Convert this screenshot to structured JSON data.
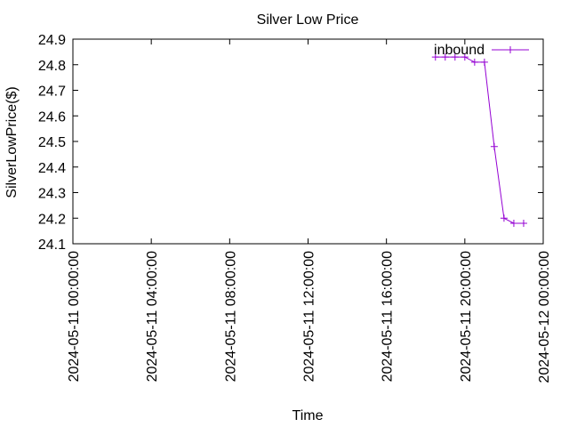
{
  "chart_data": {
    "type": "line",
    "title": "Silver Low Price",
    "xlabel": "Time",
    "ylabel": "SilverLowPrice($)",
    "x_ticks": [
      "2024-05-11 00:00:00",
      "2024-05-11 04:00:00",
      "2024-05-11 08:00:00",
      "2024-05-11 12:00:00",
      "2024-05-11 16:00:00",
      "2024-05-11 20:00:00",
      "2024-05-12 00:00:00"
    ],
    "xlim": [
      "2024-05-11 00:00:00",
      "2024-05-12 00:00:00"
    ],
    "y_ticks": [
      "24.1",
      "24.2",
      "24.3",
      "24.4",
      "24.5",
      "24.6",
      "24.7",
      "24.8",
      "24.9"
    ],
    "ylim": [
      24.1,
      24.9
    ],
    "grid": false,
    "legend_position": "top-right",
    "series": [
      {
        "name": "inbound",
        "color": "#9400d3",
        "marker": "plus",
        "x": [
          "2024-05-11 18:30:00",
          "2024-05-11 19:00:00",
          "2024-05-11 19:30:00",
          "2024-05-11 20:00:00",
          "2024-05-11 20:30:00",
          "2024-05-11 21:00:00",
          "2024-05-11 21:30:00",
          "2024-05-11 22:00:00",
          "2024-05-11 22:30:00",
          "2024-05-11 23:00:00"
        ],
        "y": [
          24.83,
          24.83,
          24.83,
          24.83,
          24.81,
          24.81,
          24.48,
          24.2,
          24.18,
          24.18
        ]
      }
    ]
  }
}
